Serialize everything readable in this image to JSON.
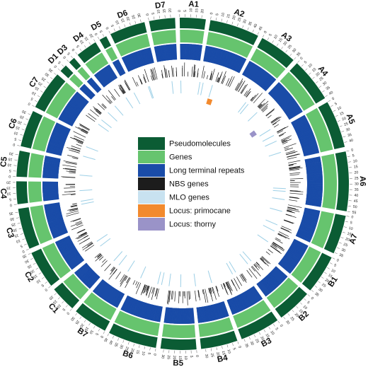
{
  "chart_data": {
    "type": "circos",
    "ring_colors": {
      "pseudomolecules": "#0b5c34",
      "genes": "#66c46e",
      "ltr": "#1a4ca8",
      "ltr_light": "#cfd8ec",
      "nbs": "#1c1c1c",
      "mlo": "#9ccfe6",
      "primocane": "#f28a2e",
      "thorny": "#9a93c8"
    },
    "chromosomes": [
      {
        "name": "A1",
        "length": 24
      },
      {
        "name": "A2",
        "length": 46
      },
      {
        "name": "A3",
        "length": 35
      },
      {
        "name": "A4",
        "length": 41
      },
      {
        "name": "A5",
        "length": 44
      },
      {
        "name": "A6",
        "length": 55
      },
      {
        "name": "A7",
        "length": 36
      },
      {
        "name": "B1",
        "length": 36
      },
      {
        "name": "B2",
        "length": 32
      },
      {
        "name": "B3",
        "length": 37
      },
      {
        "name": "B4",
        "length": 34
      },
      {
        "name": "B5",
        "length": 33
      },
      {
        "name": "B6",
        "length": 45
      },
      {
        "name": "B7",
        "length": 32
      },
      {
        "name": "C1",
        "length": 24
      },
      {
        "name": "C2",
        "length": 35
      },
      {
        "name": "C3",
        "length": 38
      },
      {
        "name": "C4",
        "length": 21
      },
      {
        "name": "C5",
        "length": 24
      },
      {
        "name": "C6",
        "length": 34
      },
      {
        "name": "C7",
        "length": 36
      },
      {
        "name": "D1",
        "length": 7
      },
      {
        "name": "D3",
        "length": 6
      },
      {
        "name": "D4",
        "length": 20
      },
      {
        "name": "D5",
        "length": 7
      },
      {
        "name": "D6",
        "length": 33
      },
      {
        "name": "D7",
        "length": 24
      }
    ],
    "legend": [
      {
        "label": "Pseudomolecules",
        "color": "#0b5c34"
      },
      {
        "label": "Genes",
        "color": "#66c46e"
      },
      {
        "label": "Long terminal repeats",
        "color": "#1a4ca8"
      },
      {
        "label": "NBS genes",
        "color": "#1c1c1c"
      },
      {
        "label": "MLO genes",
        "color": "#c8e2f0"
      },
      {
        "label": "Locus: primocane",
        "color": "#f28a2e"
      },
      {
        "label": "Locus: thorny",
        "color": "#9a93c8"
      }
    ],
    "loci": [
      {
        "name": "Locus: primocane",
        "chromosome": "A2",
        "position": 22
      },
      {
        "name": "Locus: thorny",
        "chromosome": "A4",
        "position": 30
      }
    ]
  }
}
